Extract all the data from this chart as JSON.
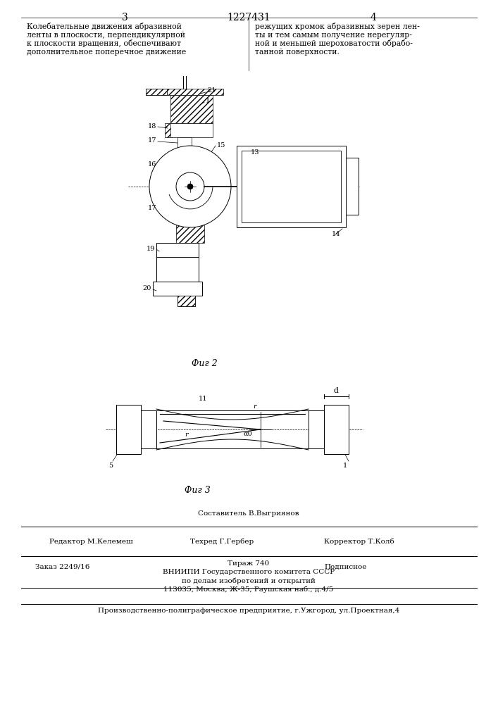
{
  "title": "1227431",
  "page_left": "3",
  "page_right": "4",
  "fig2_caption": "Фиг 2",
  "fig3_caption": "Фиг 3",
  "text_left": "Колебательные движения абразивной\nленты в плоскости, перпендикулярной\nк плоскости вращения, обеспечивают\nдополнительное поперечное движение",
  "text_right": "режущих кромок абразивных зерен лен-\nты и тем самым получение нерегуляр-\nной и меньшей шероховатости обрабо-\nтанной поверхности.",
  "footer_sestavitel": "Составитель В.Выгриянов",
  "footer_editor": "Редактор М.Келемеш",
  "footer_tech": "Техред Г.Гербер",
  "footer_corrector": "Корректор Т.Колб",
  "footer_order": "Заказ 2249/16",
  "footer_tirazh": "Тираж 740",
  "footer_signed": "Подписное",
  "footer_vniiipi": "ВНИИПИ Государственного комитета СССР",
  "footer_deals": "по делам изобретений и открытий",
  "footer_address": "113035, Москва, Ж-35, Раушская наб., д.4/5",
  "footer_production": "Производственно-полиграфическое предприятие, г.Ужгород, ул.Проектная,4",
  "bg_color": "#ffffff"
}
